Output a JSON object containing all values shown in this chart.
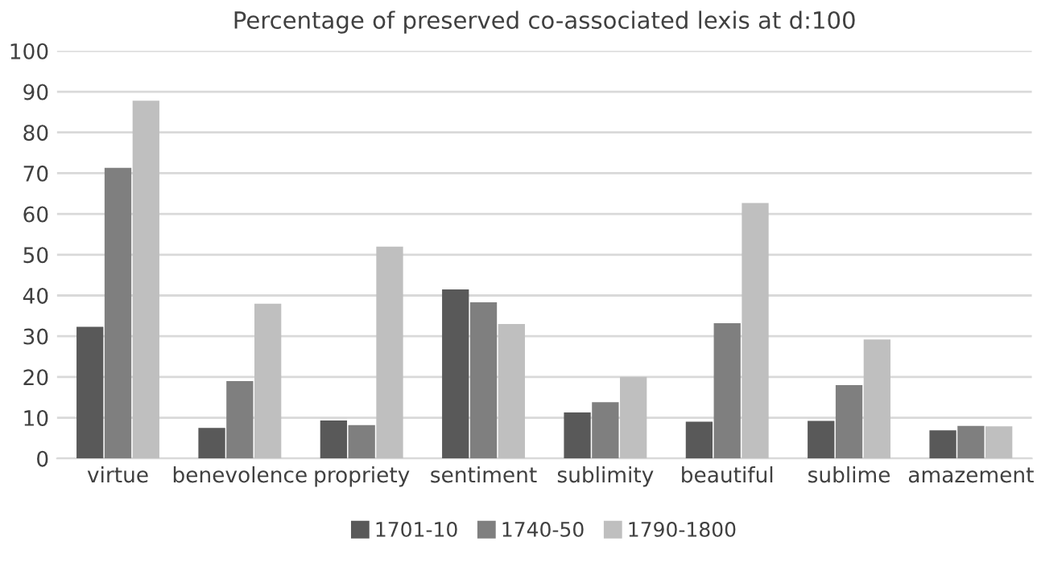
{
  "chart_data": {
    "type": "bar",
    "title": "Percentage of preserved co-associated lexis at d:100",
    "categories": [
      "virtue",
      "benevolence",
      "propriety",
      "sentiment",
      "sublimity",
      "beautiful",
      "sublime",
      "amazement"
    ],
    "series": [
      {
        "name": "1701-10",
        "color": "#595959",
        "values": [
          32.3,
          7.5,
          9.3,
          41.5,
          11.3,
          9,
          9.2,
          6.9
        ]
      },
      {
        "name": "1740-50",
        "color": "#7f7f7f",
        "values": [
          71.3,
          19,
          8.2,
          38.3,
          13.8,
          33.2,
          18,
          8
        ]
      },
      {
        "name": "1790-1800",
        "color": "#bfbfbf",
        "values": [
          87.8,
          38,
          52,
          33,
          20,
          62.7,
          29.2,
          7.9
        ]
      }
    ],
    "ylim": [
      0,
      100
    ],
    "yticks": [
      0,
      10,
      20,
      30,
      40,
      50,
      60,
      70,
      80,
      90,
      100
    ],
    "grid": "y",
    "legend": "bottom"
  }
}
